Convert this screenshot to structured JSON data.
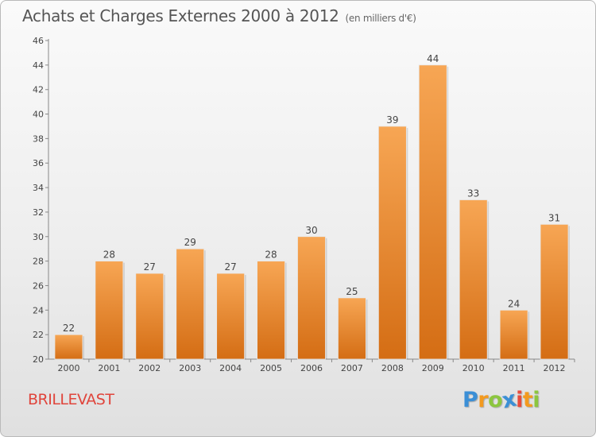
{
  "chart_data": {
    "type": "bar",
    "title": "Achats et Charges Externes 2000 à 2012",
    "subtitle": "(en milliers d'€)",
    "categories": [
      "2000",
      "2001",
      "2002",
      "2003",
      "2004",
      "2005",
      "2006",
      "2007",
      "2008",
      "2009",
      "2010",
      "2011",
      "2012"
    ],
    "values": [
      22,
      28,
      27,
      29,
      27,
      28,
      30,
      25,
      39,
      44,
      33,
      24,
      31
    ],
    "ylim": [
      20,
      46
    ],
    "yticks": [
      20,
      22,
      24,
      26,
      28,
      30,
      32,
      34,
      36,
      38,
      40,
      42,
      44,
      46
    ],
    "grid": false,
    "bar_color_top": "#f7a654",
    "bar_color_bottom": "#d46d14"
  },
  "footer": {
    "region": "BRILLEVAST",
    "region_color": "#e0453c"
  },
  "logo": {
    "letters": [
      "P",
      "r",
      "o",
      "x",
      "i",
      "t",
      "i"
    ],
    "colors": [
      "#3b8fd6",
      "#f39a1f",
      "#8cc63f",
      "#3b8fd6",
      "#e84b3c",
      "#f39a1f",
      "#8cc63f"
    ]
  }
}
